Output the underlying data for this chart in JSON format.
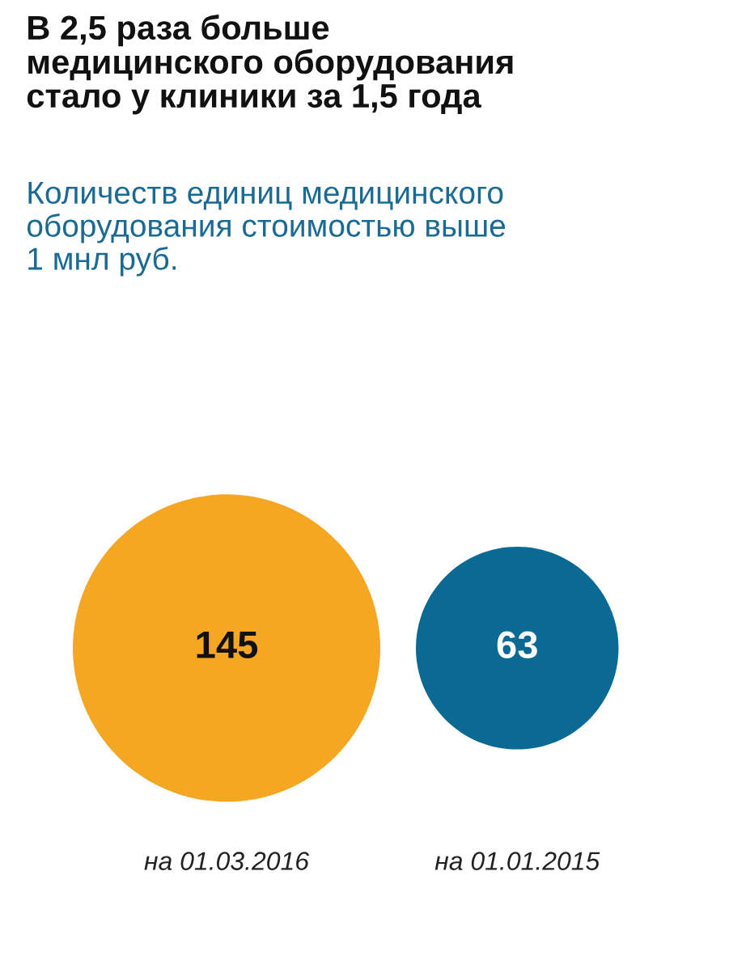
{
  "chart_data": {
    "type": "other",
    "title": "В 2,5 раза больше\nмедицинского оборудования\nстало у клиники за 1,5 года",
    "subtitle": "Количеств единиц медицинского\nоборудования стоимостью выше\n1 мнл руб.",
    "categories": [
      "на 01.03.2016",
      "на 01.01.2015"
    ],
    "values": [
      145,
      63
    ],
    "colors": [
      "#f5a623",
      "#0a6a94"
    ],
    "data_labels": true
  }
}
